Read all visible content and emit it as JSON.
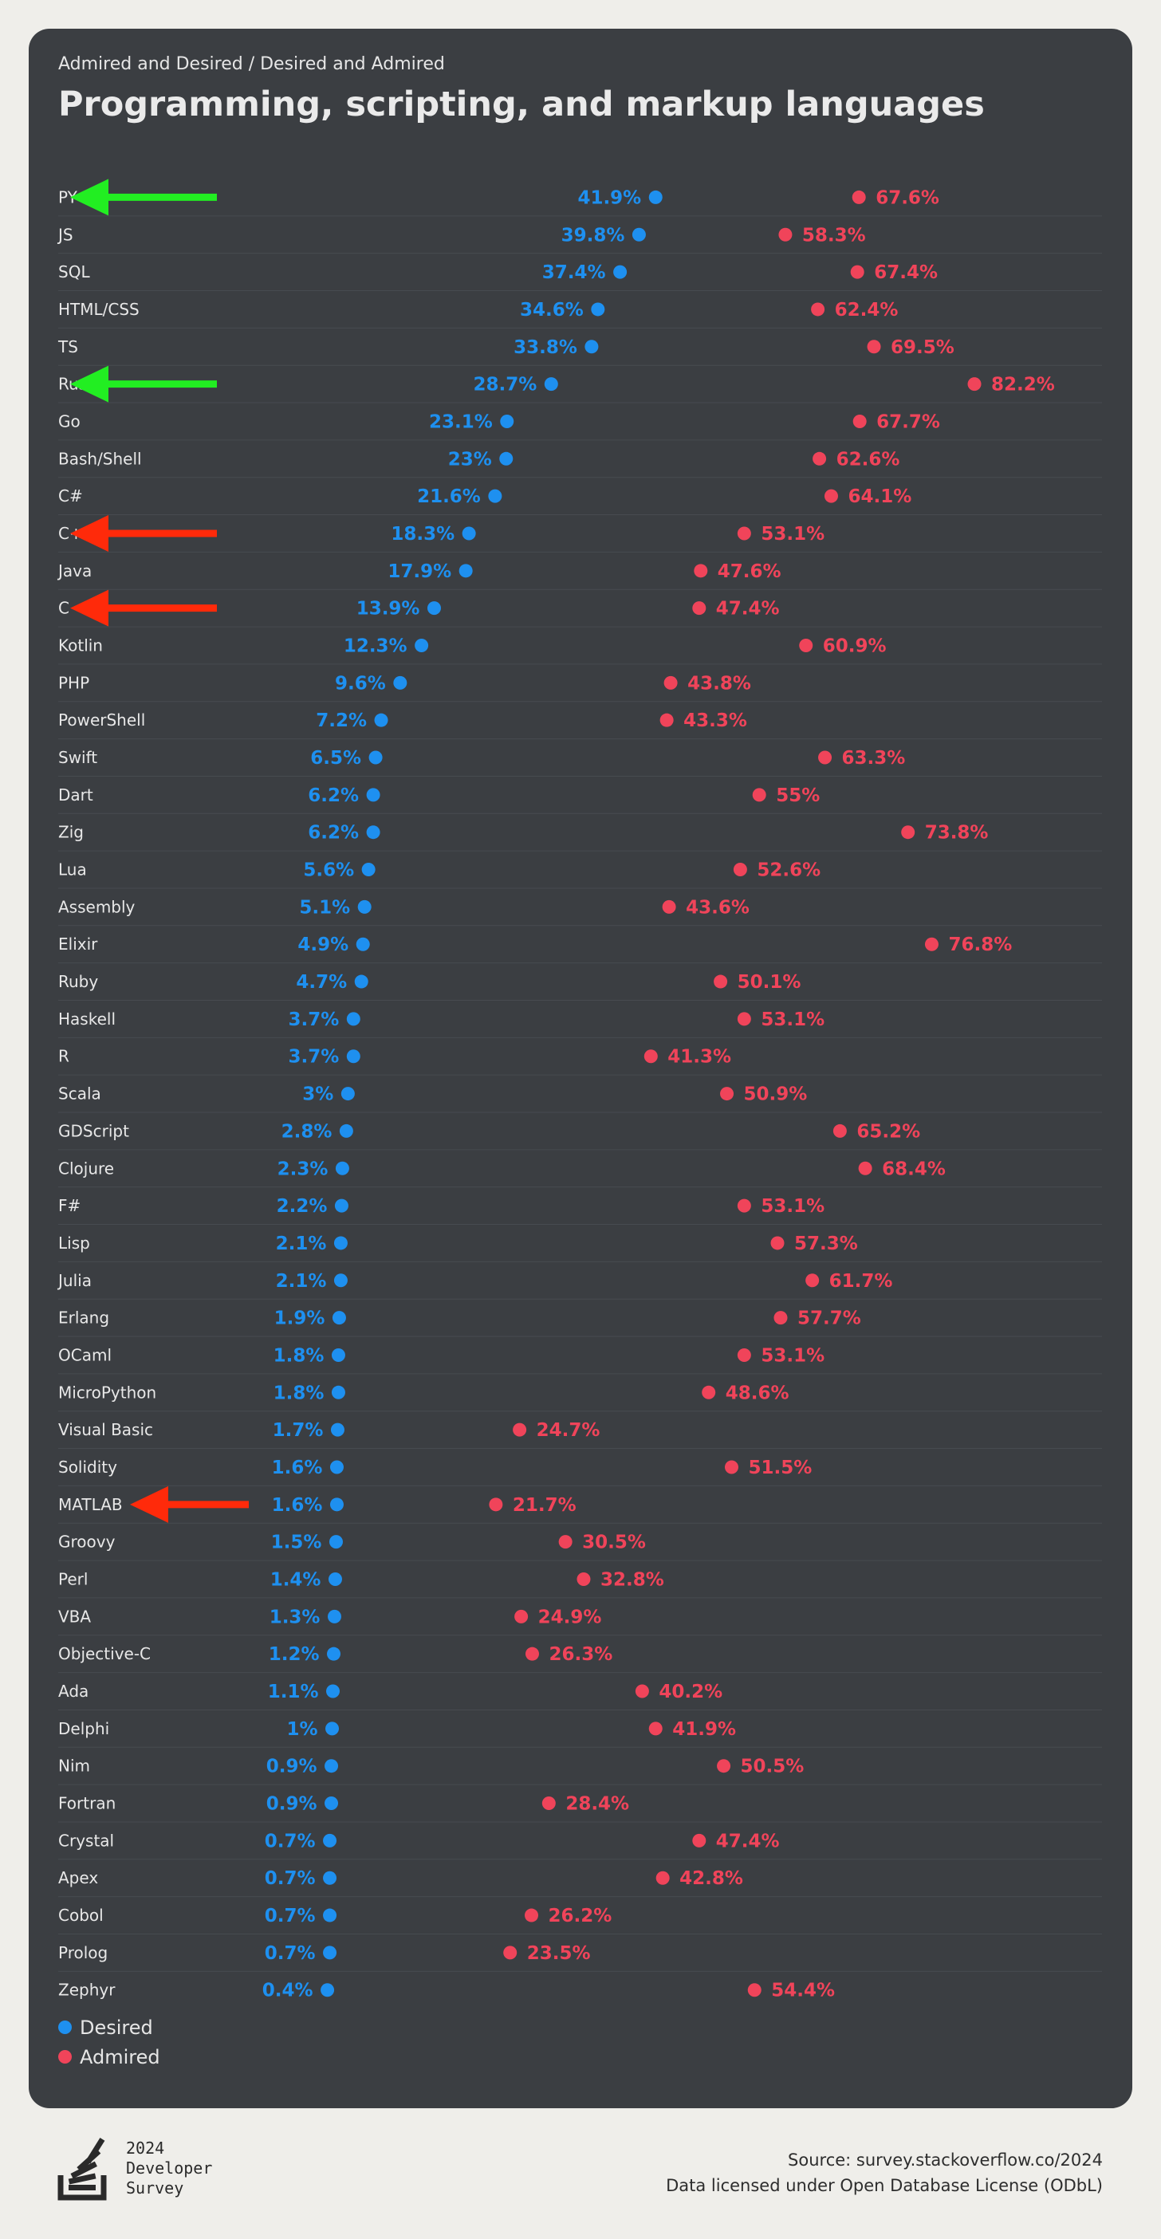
{
  "header": {
    "subtitle": "Admired and Desired / Desired and Admired",
    "title": "Programming, scripting, and markup languages"
  },
  "colors": {
    "desired": "#1e90f0",
    "admired": "#f0445a",
    "card": "#3b3e42",
    "arrow_green": "#22ee22",
    "arrow_red": "#ff2a0a"
  },
  "legend": {
    "desired_label": "Desired",
    "admired_label": "Admired"
  },
  "footer": {
    "logo_line1": "2024",
    "logo_line2": "Developer",
    "logo_line3": "Survey",
    "source": "Source: survey.stackoverflow.co/2024",
    "license": "Data licensed under Open Database License (ODbL)"
  },
  "chart_data": {
    "type": "dumbbell",
    "title": "Programming, scripting, and markup languages",
    "subtitle": "Admired and Desired / Desired and Admired",
    "unit": "%",
    "series": [
      {
        "name": "Desired",
        "color": "#1e90f0",
        "values": [
          41.9,
          39.8,
          37.4,
          34.6,
          33.8,
          28.7,
          23.1,
          23,
          21.6,
          18.3,
          17.9,
          13.9,
          12.3,
          9.6,
          7.2,
          6.5,
          6.2,
          6.2,
          5.6,
          5.1,
          4.9,
          4.7,
          3.7,
          3.7,
          3,
          2.8,
          2.3,
          2.2,
          2.1,
          2.1,
          1.9,
          1.8,
          1.8,
          1.7,
          1.6,
          1.6,
          1.5,
          1.4,
          1.3,
          1.2,
          1.1,
          1,
          0.9,
          0.9,
          0.7,
          0.7,
          0.7,
          0.7,
          0.4
        ]
      },
      {
        "name": "Admired",
        "color": "#f0445a",
        "values": [
          67.6,
          58.3,
          67.4,
          62.4,
          69.5,
          82.2,
          67.7,
          62.6,
          64.1,
          53.1,
          47.6,
          47.4,
          60.9,
          43.8,
          43.3,
          63.3,
          55,
          73.8,
          52.6,
          43.6,
          76.8,
          50.1,
          53.1,
          41.3,
          50.9,
          65.2,
          68.4,
          53.1,
          57.3,
          61.7,
          57.7,
          53.1,
          48.6,
          24.7,
          51.5,
          21.7,
          30.5,
          32.8,
          24.9,
          26.3,
          40.2,
          41.9,
          50.5,
          28.4,
          47.4,
          42.8,
          26.2,
          23.5,
          54.4
        ]
      }
    ],
    "categories": [
      "PY",
      "JS",
      "SQL",
      "HTML/CSS",
      "TS",
      "Rust",
      "Go",
      "Bash/Shell",
      "C#",
      "C++",
      "Java",
      "C",
      "Kotlin",
      "PHP",
      "PowerShell",
      "Swift",
      "Dart",
      "Zig",
      "Lua",
      "Assembly",
      "Elixir",
      "Ruby",
      "Haskell",
      "R",
      "Scala",
      "GDScript",
      "Clojure",
      "F#",
      "Lisp",
      "Julia",
      "Erlang",
      "OCaml",
      "MicroPython",
      "Visual Basic",
      "Solidity",
      "MATLAB",
      "Groovy",
      "Perl",
      "VBA",
      "Objective-C",
      "Ada",
      "Delphi",
      "Nim",
      "Fortran",
      "Crystal",
      "Apex",
      "Cobol",
      "Prolog",
      "Zephyr"
    ],
    "annotations": [
      {
        "category": "PY",
        "type": "arrow",
        "color": "green"
      },
      {
        "category": "Rust",
        "type": "arrow",
        "color": "green"
      },
      {
        "category": "C++",
        "type": "arrow",
        "color": "red"
      },
      {
        "category": "C",
        "type": "arrow",
        "color": "red"
      },
      {
        "category": "MATLAB",
        "type": "arrow",
        "color": "red"
      }
    ],
    "legend": [
      "Desired",
      "Admired"
    ],
    "legend_position": "bottom-left"
  }
}
